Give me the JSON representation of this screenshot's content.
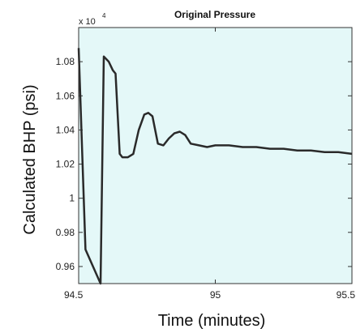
{
  "chart_data": {
    "type": "line",
    "title": "Original Pressure",
    "xlabel": "Time (minutes)",
    "ylabel": "Calculated BHP (psi)",
    "y_scale_label": "x 10",
    "y_scale_exponent": "4",
    "xlim": [
      94.5,
      95.5
    ],
    "ylim": [
      0.95,
      1.1
    ],
    "x_ticks": [
      94.5,
      95,
      95.5
    ],
    "x_tick_labels": [
      "94.5",
      "95",
      "95.5"
    ],
    "y_ticks": [
      0.96,
      0.98,
      1.0,
      1.02,
      1.04,
      1.06,
      1.08
    ],
    "y_tick_labels": [
      "0.96",
      "0.98",
      "1",
      "1.02",
      "1.04",
      "1.06",
      "1.08"
    ],
    "grid": false,
    "legend": "none",
    "colors": {
      "plot_background": "#e4f8f8",
      "line": "#2a2a2a",
      "axis": "#333333"
    },
    "series": [
      {
        "x": [
          94.5,
          94.525,
          94.58,
          94.592,
          94.61,
          94.625,
          94.635,
          94.65,
          94.66,
          94.68,
          94.7,
          94.72,
          94.74,
          94.755,
          94.77,
          94.79,
          94.81,
          94.83,
          94.85,
          94.87,
          94.89,
          94.91,
          94.94,
          94.97,
          95.0,
          95.05,
          95.1,
          95.15,
          95.2,
          95.25,
          95.3,
          95.35,
          95.4,
          95.45,
          95.5
        ],
        "y": [
          1.088,
          0.97,
          0.95,
          1.083,
          1.08,
          1.075,
          1.073,
          1.026,
          1.024,
          1.024,
          1.026,
          1.04,
          1.049,
          1.05,
          1.048,
          1.032,
          1.031,
          1.035,
          1.038,
          1.039,
          1.037,
          1.032,
          1.031,
          1.03,
          1.031,
          1.031,
          1.03,
          1.03,
          1.029,
          1.029,
          1.028,
          1.028,
          1.027,
          1.027,
          1.026
        ]
      }
    ]
  }
}
